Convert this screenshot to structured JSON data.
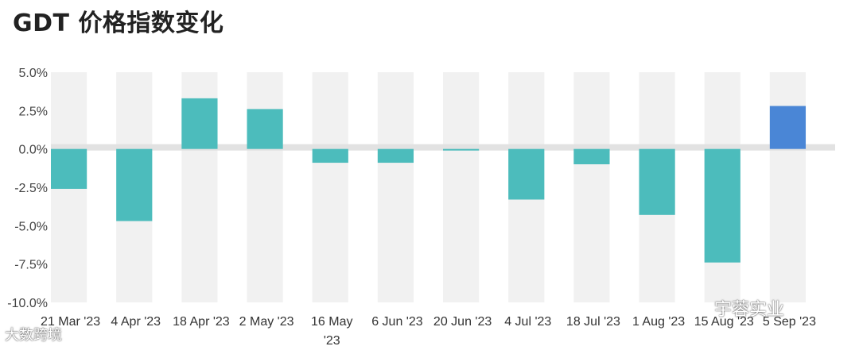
{
  "title": "GDT 价格指数变化",
  "watermarks": {
    "left": "大数跨境",
    "right": "宇蓉实业"
  },
  "colors": {
    "bar": "#4cbcbc",
    "highlight_bar": "#4a86d6",
    "band": "#f1f1f1",
    "zero_band": "#e2e2e2"
  },
  "chart_data": {
    "type": "bar",
    "title": "GDT 价格指数变化",
    "categories": [
      "21 Mar '23",
      "4 Apr '23",
      "18 Apr '23",
      "2 May '23",
      "16 May '23",
      "6 Jun '23",
      "20 Jun '23",
      "4 Jul '23",
      "18 Jul '23",
      "1 Aug '23",
      "15 Aug '23",
      "5 Sep '23"
    ],
    "values": [
      -2.6,
      -4.7,
      3.3,
      2.6,
      -0.9,
      -0.9,
      -0.1,
      -3.3,
      -1.0,
      -4.3,
      -7.4,
      2.8
    ],
    "highlight_index": 11,
    "ylim": [
      -10,
      5
    ],
    "yticks": [
      5,
      2.5,
      0,
      -2.5,
      -5,
      -7.5,
      -10
    ],
    "ytick_labels": [
      "5.0%",
      "2.5%",
      "0.0%",
      "-2.5%",
      "-5.0%",
      "-7.5%",
      "-10.0%"
    ],
    "xlabel": "",
    "ylabel": "",
    "grid": false
  }
}
